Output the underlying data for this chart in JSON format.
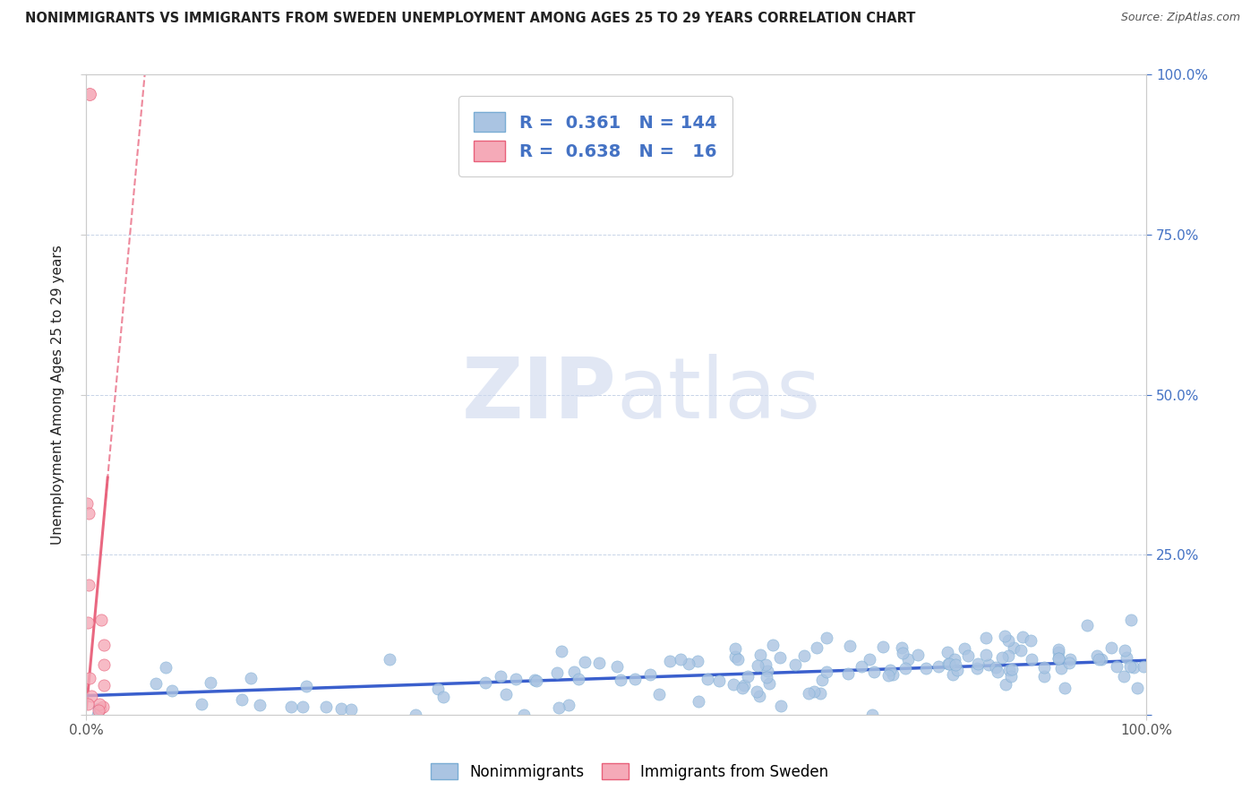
{
  "title": "NONIMMIGRANTS VS IMMIGRANTS FROM SWEDEN UNEMPLOYMENT AMONG AGES 25 TO 29 YEARS CORRELATION CHART",
  "source": "Source: ZipAtlas.com",
  "ylabel": "Unemployment Among Ages 25 to 29 years",
  "xlim": [
    0,
    1.0
  ],
  "ylim": [
    0,
    1.0
  ],
  "xtick_positions": [
    0.0,
    1.0
  ],
  "xticklabels": [
    "0.0%",
    "100.0%"
  ],
  "yticks": [
    0.0,
    0.25,
    0.5,
    0.75,
    1.0
  ],
  "yticklabels_right": [
    "",
    "25.0%",
    "50.0%",
    "75.0%",
    "100.0%"
  ],
  "nonimmigrant_color": "#aac4e2",
  "nonimmigrant_edge": "#7aadd4",
  "immigrant_color": "#f5aab8",
  "immigrant_edge": "#e8607a",
  "trendline_blue": "#3a5fcd",
  "trendline_pink": "#e8607a",
  "R_blue": 0.361,
  "N_blue": 144,
  "R_pink": 0.638,
  "N_pink": 16,
  "background_color": "#ffffff",
  "grid_color": "#c8d4e8",
  "watermark_color": "#cdd8ee",
  "title_color": "#222222",
  "source_color": "#555555",
  "tick_color": "#555555",
  "right_tick_color": "#4472c4",
  "legend_edge_color": "#cccccc"
}
